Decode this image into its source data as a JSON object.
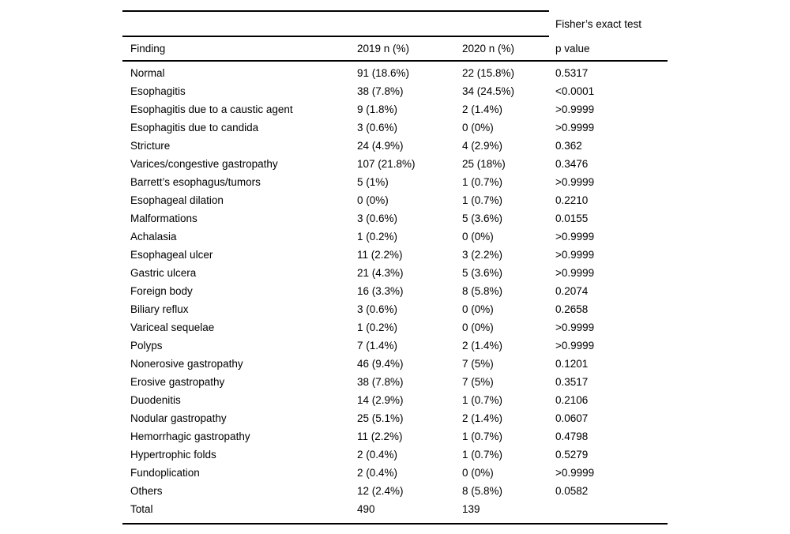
{
  "table": {
    "spanner_label": "Fisher’s exact test",
    "columns": [
      "Finding",
      "2019 n (%)",
      "2020 n (%)",
      "p value"
    ],
    "rows": [
      [
        "Normal",
        "91 (18.6%)",
        "22 (15.8%)",
        "0.5317"
      ],
      [
        "Esophagitis",
        "38 (7.8%)",
        "34 (24.5%)",
        "<0.0001"
      ],
      [
        "Esophagitis due to a caustic agent",
        "9 (1.8%)",
        "2 (1.4%)",
        ">0.9999"
      ],
      [
        "Esophagitis due to candida",
        "3 (0.6%)",
        "0 (0%)",
        ">0.9999"
      ],
      [
        "Stricture",
        "24 (4.9%)",
        "4 (2.9%)",
        "0.362"
      ],
      [
        "Varices/congestive gastropathy",
        "107 (21.8%)",
        "25 (18%)",
        "0.3476"
      ],
      [
        "Barrett’s esophagus/tumors",
        "5 (1%)",
        "1 (0.7%)",
        ">0.9999"
      ],
      [
        "Esophageal dilation",
        "0 (0%)",
        "1 (0.7%)",
        "0.2210"
      ],
      [
        "Malformations",
        "3 (0.6%)",
        "5 (3.6%)",
        "0.0155"
      ],
      [
        "Achalasia",
        "1 (0.2%)",
        "0 (0%)",
        ">0.9999"
      ],
      [
        "Esophageal ulcer",
        "11 (2.2%)",
        "3 (2.2%)",
        ">0.9999"
      ],
      [
        "Gastric ulcera",
        "21 (4.3%)",
        "5 (3.6%)",
        ">0.9999"
      ],
      [
        "Foreign body",
        "16 (3.3%)",
        "8 (5.8%)",
        "0.2074"
      ],
      [
        "Biliary reflux",
        "3 (0.6%)",
        "0 (0%)",
        "0.2658"
      ],
      [
        "Variceal sequelae",
        "1 (0.2%)",
        "0 (0%)",
        ">0.9999"
      ],
      [
        "Polyps",
        "7 (1.4%)",
        "2 (1.4%)",
        ">0.9999"
      ],
      [
        "Nonerosive gastropathy",
        "46 (9.4%)",
        "7 (5%)",
        "0.1201"
      ],
      [
        "Erosive gastropathy",
        "38 (7.8%)",
        "7 (5%)",
        "0.3517"
      ],
      [
        "Duodenitis",
        "14 (2.9%)",
        "1 (0.7%)",
        "0.2106"
      ],
      [
        "Nodular gastropathy",
        "25 (5.1%)",
        "2 (1.4%)",
        "0.0607"
      ],
      [
        "Hemorrhagic gastropathy",
        "11 (2.2%)",
        "1 (0.7%)",
        "0.4798"
      ],
      [
        "Hypertrophic folds",
        "2 (0.4%)",
        "1 (0.7%)",
        "0.5279"
      ],
      [
        "Fundoplication",
        "2 (0.4%)",
        "0 (0%)",
        ">0.9999"
      ],
      [
        "Others",
        "12 (2.4%)",
        "8 (5.8%)",
        "0.0582"
      ],
      [
        "Total",
        "490",
        "139",
        ""
      ]
    ]
  }
}
